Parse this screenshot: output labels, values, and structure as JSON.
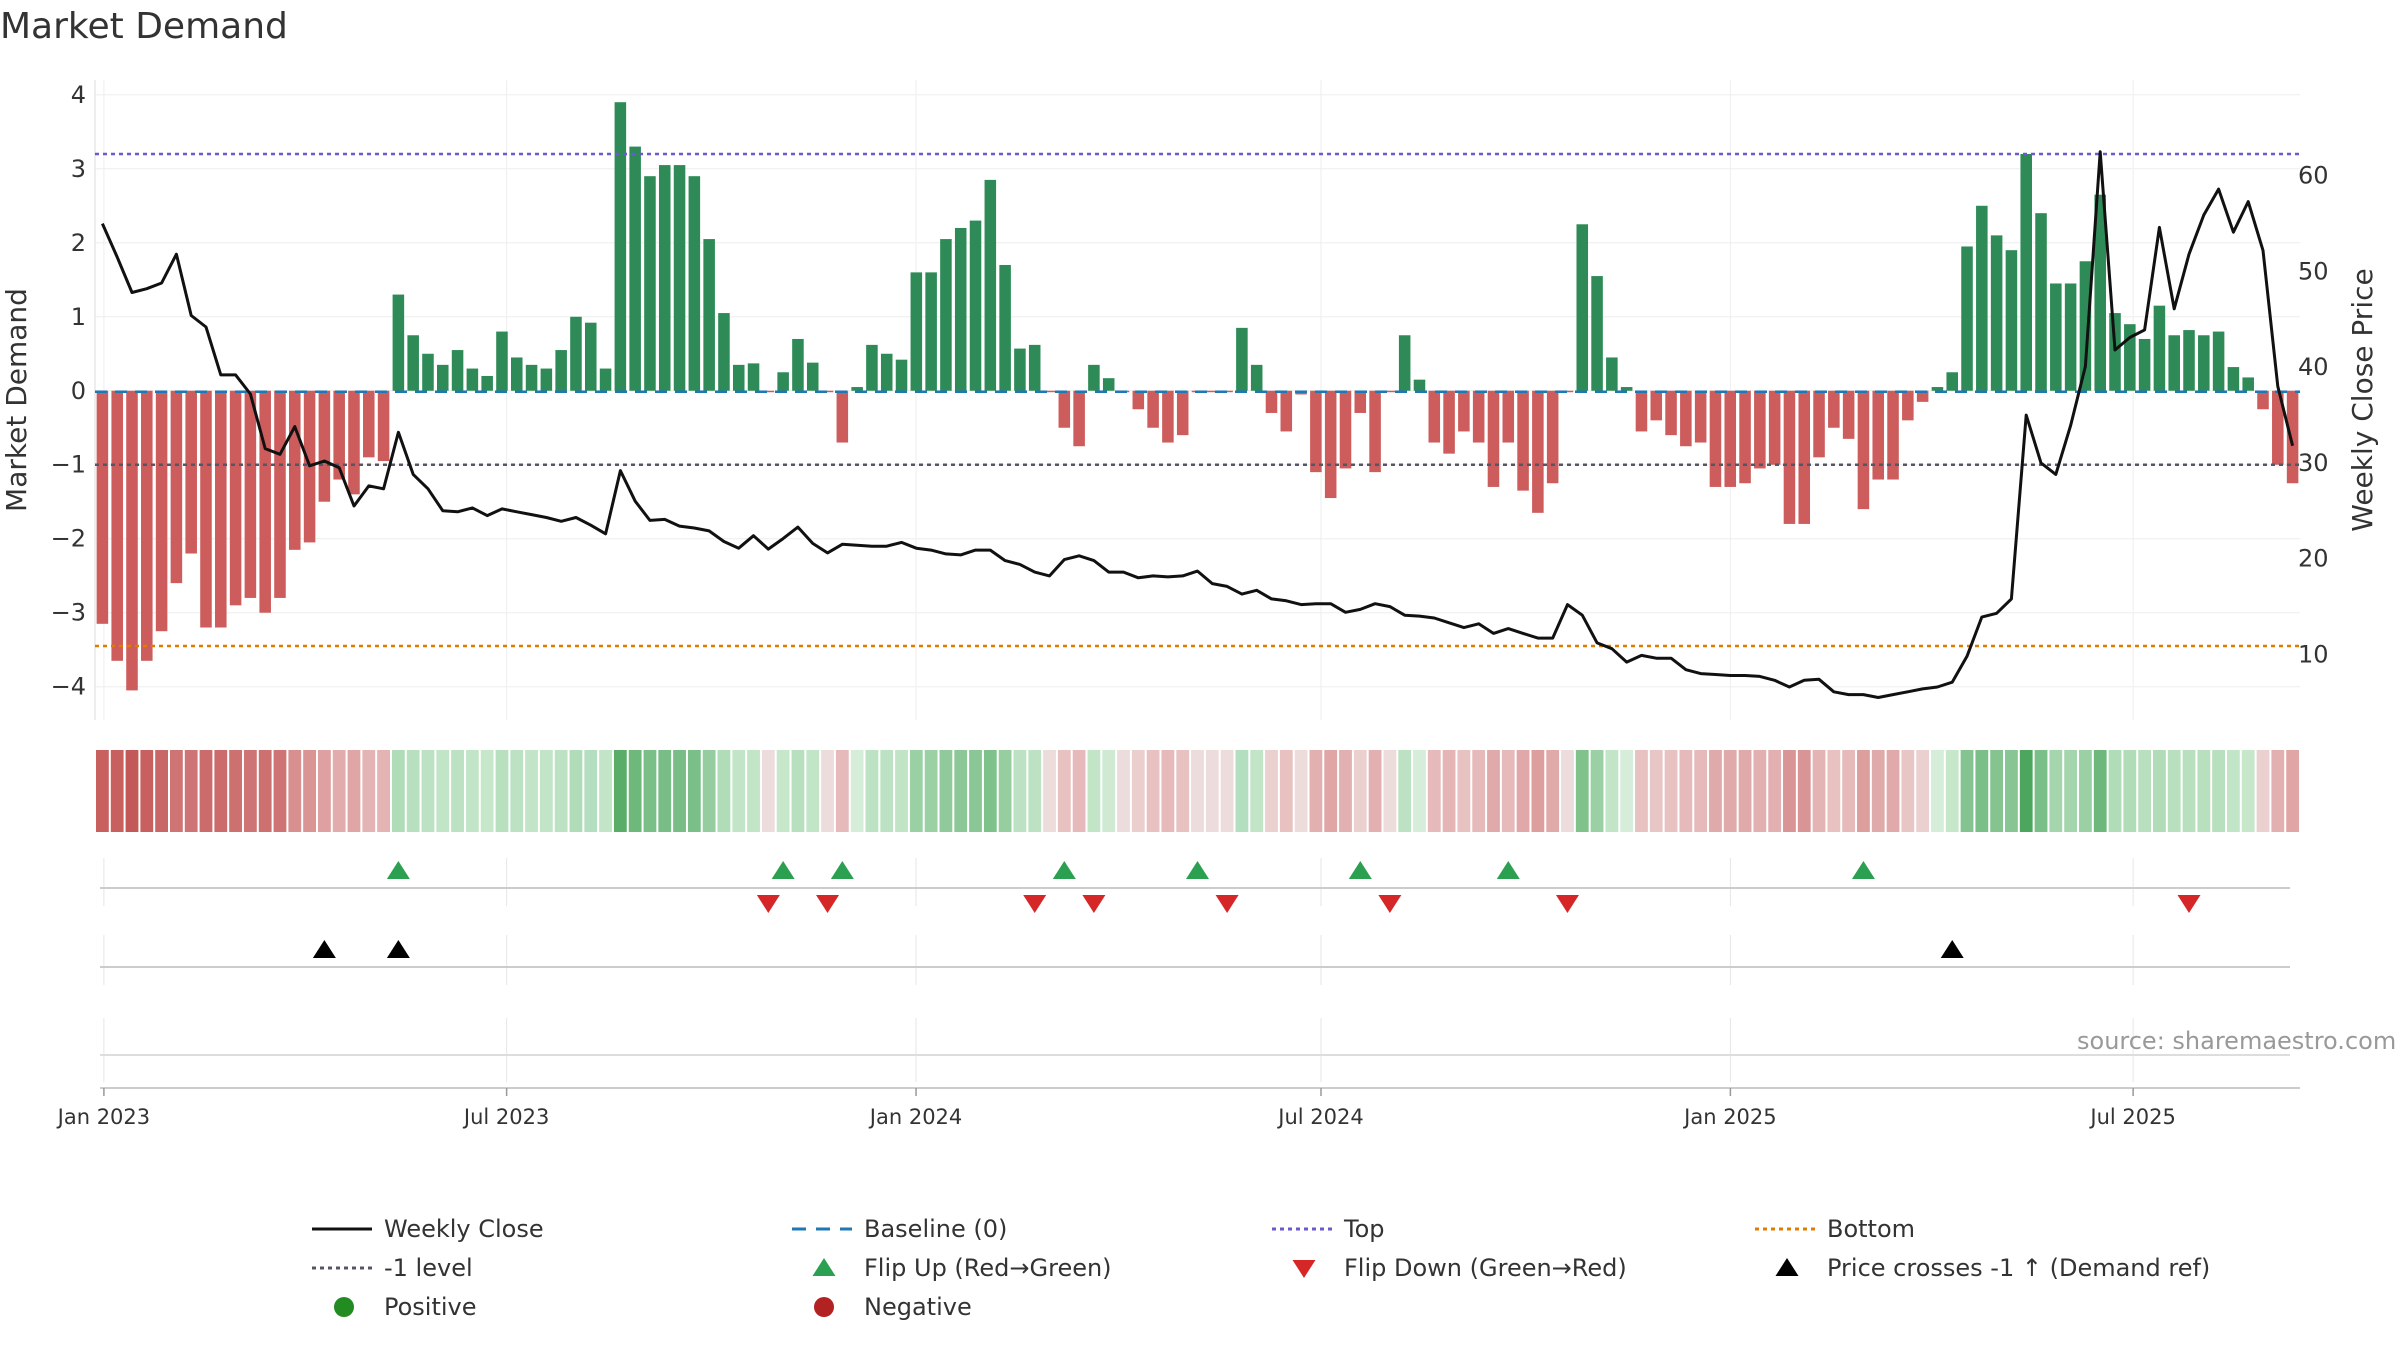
{
  "colors": {
    "pos": "#2e8b57",
    "neg": "#cd5c5c",
    "top": "#6a5acd",
    "bottom": "#e07b00",
    "minus1": "#555566",
    "baseline": "#1f77b4",
    "close": "#111111",
    "flipUp": "#2aa050",
    "flipDown": "#d62728",
    "cross": "#000000",
    "positiveDot": "#228b22",
    "negativeDot": "#b22222"
  },
  "chart_data": {
    "type": "bar",
    "title": "Market Demand",
    "ylabel": "Market Demand",
    "y2label": "Weekly Close Price",
    "ylim": [
      -4.45,
      4.2
    ],
    "y2lim": [
      3.15,
      70
    ],
    "yticks": [
      4,
      3,
      2,
      1,
      0,
      -1,
      -2,
      -3,
      -4
    ],
    "y2ticks": [
      60,
      50,
      40,
      30,
      20,
      10
    ],
    "top_level": 3.2,
    "bottom_level": -3.45,
    "minus1_level": -1,
    "x_start": "2022-12-28",
    "x_end": "2025-09-14",
    "xticks": [
      {
        "label": "Jan 2023",
        "date": "2023-01-01"
      },
      {
        "label": "Jul 2023",
        "date": "2023-07-01"
      },
      {
        "label": "Jan 2024",
        "date": "2024-01-01"
      },
      {
        "label": "Jul 2024",
        "date": "2024-07-01"
      },
      {
        "label": "Jan 2025",
        "date": "2025-01-01"
      },
      {
        "label": "Jul 2025",
        "date": "2025-07-01"
      }
    ],
    "demand": [
      -3.15,
      -3.65,
      -4.05,
      -3.65,
      -3.25,
      -2.6,
      -2.2,
      -3.2,
      -3.2,
      -2.9,
      -2.8,
      -3.0,
      -2.8,
      -2.15,
      -2.05,
      -1.5,
      -1.2,
      -1.4,
      -0.9,
      -0.95,
      1.3,
      0.75,
      0.5,
      0.35,
      0.55,
      0.3,
      0.2,
      0.8,
      0.45,
      0.35,
      0.3,
      0.55,
      1.0,
      0.92,
      0.3,
      3.9,
      3.3,
      2.9,
      3.05,
      3.05,
      2.9,
      2.05,
      1.05,
      0.35,
      0.37,
      -0.02,
      0.25,
      0.7,
      0.38,
      -0.02,
      -0.7,
      0.05,
      0.62,
      0.5,
      0.42,
      1.6,
      1.6,
      2.05,
      2.2,
      2.3,
      2.85,
      1.7,
      0.57,
      0.62,
      -0.02,
      -0.5,
      -0.75,
      0.35,
      0.17,
      -0.02,
      -0.25,
      -0.5,
      -0.7,
      -0.6,
      -0.02,
      -0.02,
      -0.02,
      0.85,
      0.35,
      -0.3,
      -0.55,
      -0.05,
      -1.1,
      -1.45,
      -1.05,
      -0.3,
      -1.1,
      -0.02,
      0.75,
      0.15,
      -0.7,
      -0.85,
      -0.55,
      -0.7,
      -1.3,
      -0.7,
      -1.35,
      -1.65,
      -1.25,
      -0.02,
      2.25,
      1.55,
      0.45,
      0.05,
      -0.55,
      -0.4,
      -0.6,
      -0.75,
      -0.7,
      -1.3,
      -1.3,
      -1.25,
      -1.05,
      -1.0,
      -1.8,
      -1.8,
      -0.9,
      -0.5,
      -0.65,
      -1.6,
      -1.2,
      -1.2,
      -0.4,
      -0.15,
      0.05,
      0.25,
      1.95,
      2.5,
      2.1,
      1.9,
      3.2,
      2.4,
      1.45,
      1.45,
      1.75,
      2.65,
      1.05,
      0.9,
      0.7,
      1.15,
      0.75,
      0.82,
      0.75,
      0.8,
      0.32,
      0.18,
      -0.25,
      -1.0,
      -1.25
    ],
    "close": [
      55,
      51.5,
      47.8,
      48.2,
      48.8,
      51.8,
      45.4,
      44.2,
      39.2,
      39.2,
      37.2,
      31.5,
      30.9,
      33.8,
      29.7,
      30.2,
      29.5,
      25.5,
      27.6,
      27.3,
      33.2,
      28.8,
      27.3,
      25.0,
      24.9,
      25.3,
      24.5,
      25.2,
      24.9,
      24.6,
      24.3,
      23.9,
      24.3,
      23.5,
      22.6,
      29.2,
      26.0,
      24.0,
      24.1,
      23.4,
      23.2,
      22.9,
      21.8,
      21.1,
      22.4,
      21.0,
      22.1,
      23.3,
      21.6,
      20.6,
      21.5,
      21.4,
      21.3,
      21.3,
      21.7,
      21.1,
      20.9,
      20.5,
      20.4,
      20.9,
      20.9,
      19.8,
      19.4,
      18.6,
      18.2,
      19.9,
      20.3,
      19.8,
      18.6,
      18.6,
      18.0,
      18.2,
      18.1,
      18.2,
      18.7,
      17.4,
      17.1,
      16.3,
      16.7,
      15.8,
      15.6,
      15.2,
      15.3,
      15.3,
      14.4,
      14.7,
      15.3,
      15.0,
      14.1,
      14.0,
      13.8,
      13.3,
      12.8,
      13.2,
      12.2,
      12.7,
      12.2,
      11.7,
      11.7,
      15.2,
      14.1,
      11.2,
      10.6,
      9.2,
      9.9,
      9.6,
      9.6,
      8.4,
      8.0,
      7.9,
      7.8,
      7.8,
      7.7,
      7.3,
      6.6,
      7.3,
      7.4,
      6.1,
      5.8,
      5.8,
      5.5,
      5.8,
      6.1,
      6.4,
      6.6,
      7.1,
      9.8,
      13.9,
      14.3,
      15.8,
      35.0,
      30.0,
      28.8,
      33.9,
      40.1,
      62.5,
      41.8,
      43.1,
      43.9,
      54.6,
      46.1,
      51.8,
      55.9,
      58.6,
      54.1,
      57.3,
      52.2,
      38.0,
      31.8
    ],
    "tile_colors": [
      "#c86060",
      "#c86060",
      "#c35858",
      "#c86060",
      "#c96666",
      "#ce7474",
      "#ce7474",
      "#cb6b6b",
      "#cb6b6b",
      "#cd7070",
      "#ce7474",
      "#cd7070",
      "#ce7474",
      "#d88f8f",
      "#da9494",
      "#dea0a0",
      "#e2acac",
      "#e0a6a6",
      "#e4b3b3",
      "#e4b3b3",
      "#b0dcb8",
      "#b8e0bf",
      "#bde2c3",
      "#c2e5c7",
      "#bde2c3",
      "#c2e5c7",
      "#c7e7cb",
      "#b8e0bf",
      "#bde2c3",
      "#c2e5c7",
      "#c2e5c7",
      "#bde2c3",
      "#b0dcb8",
      "#b4dec0",
      "#c2e5c7",
      "#5aad69",
      "#6fb87c",
      "#7bbf88",
      "#78bd85",
      "#78bd85",
      "#7bbf88",
      "#95cca0",
      "#b0dcb8",
      "#c2e5c7",
      "#c2e5c7",
      "#eddcdc",
      "#c7e7cb",
      "#b8e0bf",
      "#c2e5c7",
      "#eddcdc",
      "#e6baba",
      "#d6edd9",
      "#bde2c3",
      "#bde2c3",
      "#c0e4c5",
      "#9ad0a4",
      "#9ad0a4",
      "#90c99b",
      "#8cc798",
      "#8ac696",
      "#7fc18b",
      "#97ce9f",
      "#bde2c3",
      "#bde2c3",
      "#eddcdc",
      "#e8c1c1",
      "#e6baba",
      "#c2e5c7",
      "#cfe9d2",
      "#eddcdc",
      "#ebcfcf",
      "#e8c1c1",
      "#e6baba",
      "#e8c1c1",
      "#eddcdc",
      "#eddcdc",
      "#eddcdc",
      "#b4dec0",
      "#c2e5c7",
      "#ebd0d0",
      "#e8c1c1",
      "#eddcdc",
      "#e2b0b0",
      "#e0a6a6",
      "#e2b0b0",
      "#ebd0d0",
      "#e2b0b0",
      "#eddcdc",
      "#bde2c3",
      "#d6edd9",
      "#e6baba",
      "#e5b5b5",
      "#e8c1c1",
      "#e6baba",
      "#e0aaaa",
      "#e6baba",
      "#e0a8a8",
      "#dd9e9e",
      "#e0aaaa",
      "#eddcdc",
      "#80c18c",
      "#9ad0a4",
      "#c2e5c7",
      "#d6edd9",
      "#e8c1c1",
      "#e9c6c6",
      "#e8c1c1",
      "#e6baba",
      "#e6baba",
      "#e0aaaa",
      "#e0aaaa",
      "#e0aaaa",
      "#e2b0b0",
      "#e2b0b0",
      "#d99595",
      "#d99595",
      "#e4b3b3",
      "#e8c1c1",
      "#e6baba",
      "#dd9e9e",
      "#e0aaaa",
      "#e0aaaa",
      "#e9c6c6",
      "#ebd0d0",
      "#d6edd9",
      "#c7e7cb",
      "#85c491",
      "#7bbf88",
      "#85c491",
      "#88c594",
      "#4da65d",
      "#7bbf88",
      "#a4d5ad",
      "#a4d5ad",
      "#9ad0a4",
      "#6fb87c",
      "#b0dcb8",
      "#b0dcb8",
      "#b8e0bf",
      "#b0dcb8",
      "#b8e0bf",
      "#b8e0bf",
      "#b8e0bf",
      "#b8e0bf",
      "#c2e5c7",
      "#c7e7cb",
      "#ebd0d0",
      "#e2b0b0",
      "#e0a6a6"
    ],
    "flip_up_idx": [
      20,
      46,
      50,
      65,
      74,
      85,
      95,
      119
    ],
    "flip_down_idx": [
      45,
      49,
      63,
      67,
      76,
      87,
      99,
      141
    ],
    "cross_up_idx": [
      15,
      20,
      125
    ]
  },
  "source": "source: sharemaestro.com",
  "legend": [
    {
      "label": "Weekly Close",
      "kind": "line-solid",
      "color": "#111111"
    },
    {
      "label": "Baseline (0)",
      "kind": "line-dash",
      "color": "#1f77b4"
    },
    {
      "label": "Top",
      "kind": "line-dot",
      "color": "#6a5acd"
    },
    {
      "label": "Bottom",
      "kind": "line-dot",
      "color": "#e07b00"
    },
    {
      "label": "-1 level",
      "kind": "line-dot",
      "color": "#555566"
    },
    {
      "label": "Flip Up (Red→Green)",
      "kind": "tri-up",
      "color": "#2aa050"
    },
    {
      "label": "Flip Down (Green→Red)",
      "kind": "tri-down",
      "color": "#d62728"
    },
    {
      "label": "Price crosses -1 ↑ (Demand ref)",
      "kind": "tri-up",
      "color": "#000000"
    },
    {
      "label": "Positive",
      "kind": "dot",
      "color": "#228b22"
    },
    {
      "label": "Negative",
      "kind": "dot",
      "color": "#b22222"
    }
  ]
}
